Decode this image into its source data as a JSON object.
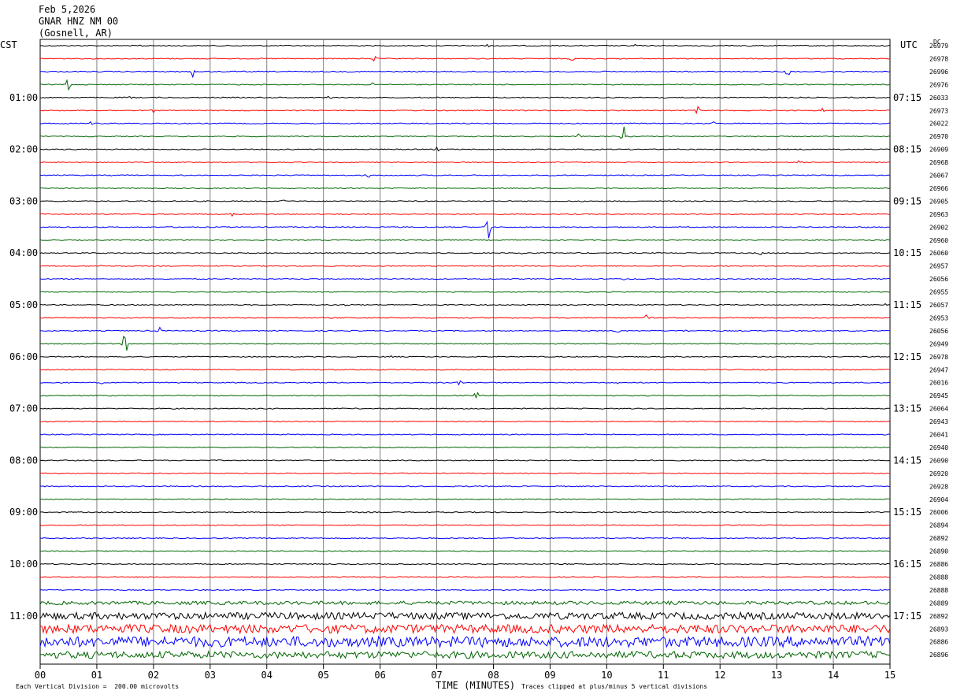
{
  "header": {
    "date": "Feb 5,2026",
    "station": "GNAR HNZ NM 00",
    "location": "(Gosnell, AR)"
  },
  "left_timezone": "CST",
  "right_timezone": "UTC",
  "dc_label": "DC",
  "footer": {
    "scale_note": "Each Vertical Division =  200.00 microvolts",
    "xaxis_title": "TIME (MINUTES)",
    "clip_note": "Traces clipped at plus/minus 5 vertical divisions"
  },
  "colors": {
    "black": "#000000",
    "red": "#ff0000",
    "blue": "#0000ff",
    "green": "#006400",
    "grid": "#808080"
  },
  "chart_data": {
    "type": "line",
    "title": "GNAR HNZ NM 00",
    "xlabel": "TIME (MINUTES)",
    "xlim": [
      0,
      15
    ],
    "x_ticks": [
      "00",
      "01",
      "02",
      "03",
      "04",
      "05",
      "06",
      "07",
      "08",
      "09",
      "10",
      "11",
      "12",
      "13",
      "14",
      "15"
    ],
    "trace_minutes": 15,
    "trace_color_cycle": [
      "black",
      "red",
      "blue",
      "green"
    ],
    "hour_labels_cst": [
      "01:00",
      "02:00",
      "03:00",
      "04:00",
      "05:00",
      "06:00",
      "07:00",
      "08:00",
      "09:00",
      "10:00",
      "11:00"
    ],
    "hour_labels_utc": [
      "07:15",
      "08:15",
      "09:15",
      "10:15",
      "11:15",
      "12:15",
      "13:15",
      "14:15",
      "15:15",
      "16:15",
      "17:15"
    ],
    "dc_offsets": [
      26979,
      26978,
      26996,
      26976,
      26033,
      26973,
      26022,
      26970,
      26909,
      26968,
      26067,
      26966,
      26905,
      26963,
      26902,
      26960,
      26060,
      26957,
      26056,
      26955,
      26057,
      26953,
      26056,
      26949,
      26978,
      26947,
      26016,
      26945,
      26064,
      26943,
      26041,
      26940,
      26090,
      26920,
      26928,
      26904,
      26006,
      26894,
      26892,
      26890,
      26886,
      26888,
      26888,
      26889,
      26892,
      26893,
      26886,
      26896
    ],
    "trace_noise": [
      1,
      1,
      1,
      1,
      1,
      1,
      1,
      1,
      1,
      1,
      1,
      1,
      1,
      1,
      1,
      1,
      1,
      1,
      1,
      1,
      1,
      1,
      1,
      1,
      1,
      1,
      1,
      1,
      1,
      1,
      1,
      1,
      1,
      1,
      1,
      1,
      1,
      1,
      1,
      1,
      1,
      1,
      1,
      2,
      4,
      5,
      6,
      4
    ],
    "events": [
      {
        "trace": 0,
        "minute": 1.8,
        "amp": 2
      },
      {
        "trace": 0,
        "minute": 7.9,
        "amp": 2
      },
      {
        "trace": 0,
        "minute": 10.5,
        "amp": 2
      },
      {
        "trace": 0,
        "minute": 12.5,
        "amp": 2
      },
      {
        "trace": 1,
        "minute": 5.9,
        "amp": 4
      },
      {
        "trace": 1,
        "minute": 9.4,
        "amp": 3
      },
      {
        "trace": 2,
        "minute": 2.7,
        "amp": 8
      },
      {
        "trace": 2,
        "minute": 13.2,
        "amp": 6
      },
      {
        "trace": 3,
        "minute": 0.5,
        "amp": 14
      },
      {
        "trace": 3,
        "minute": 5.9,
        "amp": 5
      },
      {
        "trace": 4,
        "minute": 1.6,
        "amp": 2
      },
      {
        "trace": 4,
        "minute": 5.1,
        "amp": 3
      },
      {
        "trace": 4,
        "minute": 11.0,
        "amp": 3
      },
      {
        "trace": 5,
        "minute": 2.0,
        "amp": 3
      },
      {
        "trace": 5,
        "minute": 11.6,
        "amp": 6
      },
      {
        "trace": 5,
        "minute": 13.8,
        "amp": 6
      },
      {
        "trace": 6,
        "minute": 0.9,
        "amp": 3
      },
      {
        "trace": 6,
        "minute": 11.9,
        "amp": 3
      },
      {
        "trace": 7,
        "minute": 9.5,
        "amp": 4
      },
      {
        "trace": 7,
        "minute": 10.3,
        "amp": 16
      },
      {
        "trace": 8,
        "minute": 7.0,
        "amp": 3
      },
      {
        "trace": 9,
        "minute": 13.4,
        "amp": 3
      },
      {
        "trace": 10,
        "minute": 1.3,
        "amp": 3
      },
      {
        "trace": 10,
        "minute": 5.8,
        "amp": 3
      },
      {
        "trace": 12,
        "minute": 4.3,
        "amp": 3
      },
      {
        "trace": 13,
        "minute": 3.4,
        "amp": 3
      },
      {
        "trace": 14,
        "minute": 7.9,
        "amp": 28
      },
      {
        "trace": 14,
        "minute": 14.6,
        "amp": 3
      },
      {
        "trace": 16,
        "minute": 8.5,
        "amp": 2
      },
      {
        "trace": 16,
        "minute": 12.7,
        "amp": 3
      },
      {
        "trace": 17,
        "minute": 1.1,
        "amp": 3
      },
      {
        "trace": 18,
        "minute": 10.3,
        "amp": 2
      },
      {
        "trace": 20,
        "minute": 5.4,
        "amp": 2
      },
      {
        "trace": 20,
        "minute": 14.9,
        "amp": 4
      },
      {
        "trace": 21,
        "minute": 10.7,
        "amp": 6
      },
      {
        "trace": 22,
        "minute": 2.1,
        "amp": 5
      },
      {
        "trace": 22,
        "minute": 10.2,
        "amp": 3
      },
      {
        "trace": 22,
        "minute": 11.4,
        "amp": 2
      },
      {
        "trace": 23,
        "minute": 1.5,
        "amp": 18
      },
      {
        "trace": 24,
        "minute": 6.2,
        "amp": 2
      },
      {
        "trace": 26,
        "minute": 1.1,
        "amp": 2
      },
      {
        "trace": 26,
        "minute": 7.4,
        "amp": 4
      },
      {
        "trace": 26,
        "minute": 10.2,
        "amp": 2
      },
      {
        "trace": 27,
        "minute": 7.7,
        "amp": 6
      }
    ]
  }
}
